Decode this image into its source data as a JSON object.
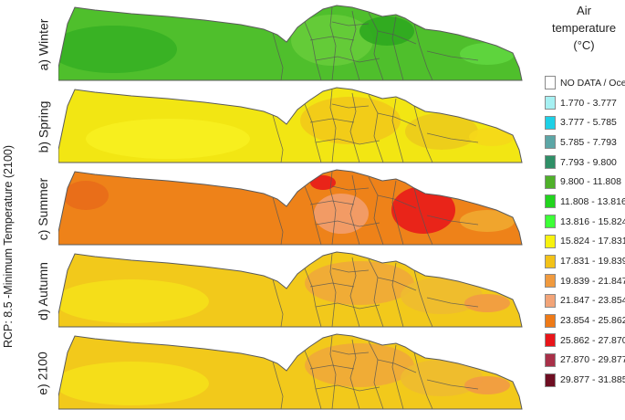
{
  "figure": {
    "vertical_label": "RCP: 8.5 -Minimum Temperature (2100)",
    "legend_title": [
      "Air",
      "temperature",
      "(°C)"
    ]
  },
  "panels": [
    {
      "label": "a) Winter",
      "base": "#4fbf2c",
      "patches": [
        "#36b024",
        "#66cc3a",
        "#2ea81f",
        "#5fd63f"
      ]
    },
    {
      "label": "b) Spring",
      "base": "#f2e613",
      "patches": [
        "#f7f020",
        "#f2c919",
        "#eccb1c",
        "#f5d81a"
      ]
    },
    {
      "label": "c) Summer",
      "base": "#ee8219",
      "patches": [
        "#e86c1a",
        "#f29d6e",
        "#e81a1a",
        "#f0a830"
      ]
    },
    {
      "label": "d) Autumn",
      "base": "#f2c91b",
      "patches": [
        "#f5e01a",
        "#f0a83a",
        "#eebb30",
        "#f29a45"
      ]
    },
    {
      "label": "e) 2100",
      "base": "#f2c91b",
      "patches": [
        "#f5e01a",
        "#f0a83a",
        "#eebb30",
        "#f29a45"
      ]
    }
  ],
  "legend": [
    {
      "label": "NO DATA / Ocean",
      "color": "#ffffff"
    },
    {
      "label": "1.770 - 3.777",
      "color": "#a6f0f2"
    },
    {
      "label": "3.777 - 5.785",
      "color": "#1ed0e6"
    },
    {
      "label": "5.785 - 7.793",
      "color": "#5ca6a6"
    },
    {
      "label": "7.793 - 9.800",
      "color": "#2f8f67"
    },
    {
      "label": "9.800 - 11.808",
      "color": "#4fb02a"
    },
    {
      "label": "11.808 - 13.816",
      "color": "#22d41e"
    },
    {
      "label": "13.816 - 15.824",
      "color": "#3dff37"
    },
    {
      "label": "15.824 - 17.831",
      "color": "#f7f20f"
    },
    {
      "label": "17.831 - 19.839",
      "color": "#f2c218"
    },
    {
      "label": "19.839 - 21.847",
      "color": "#f09a3e"
    },
    {
      "label": "21.847 - 23.854",
      "color": "#f2a478"
    },
    {
      "label": "23.854 - 25.862",
      "color": "#ee7a17"
    },
    {
      "label": "25.862 - 27.870",
      "color": "#e8151a"
    },
    {
      "label": "27.870 - 29.877",
      "color": "#a83048"
    },
    {
      "label": "29.877 - 31.885",
      "color": "#6e0e22"
    }
  ]
}
